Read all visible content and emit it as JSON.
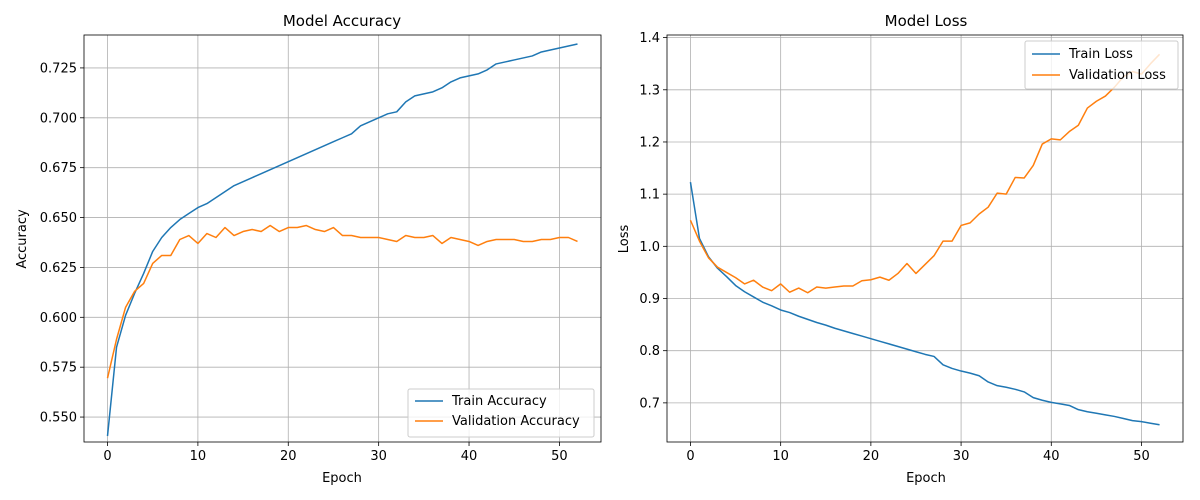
{
  "colors": {
    "train": "#1f77b4",
    "validation": "#ff7f0e",
    "grid": "#b0b0b0"
  },
  "chart_data": [
    {
      "type": "line",
      "title": "Model Accuracy",
      "xlabel": "Epoch",
      "ylabel": "Accuracy",
      "xlim": [
        -2.6,
        54.6
      ],
      "ylim": [
        0.5375,
        0.7415
      ],
      "xticks": [
        0,
        10,
        20,
        30,
        40,
        50
      ],
      "yticks": [
        0.55,
        0.575,
        0.6,
        0.625,
        0.65,
        0.675,
        0.7,
        0.725
      ],
      "ytick_labels": [
        "0.550",
        "0.575",
        "0.600",
        "0.625",
        "0.650",
        "0.675",
        "0.700",
        "0.725"
      ],
      "grid": true,
      "legend_position": "lower right",
      "x": [
        0,
        1,
        2,
        3,
        4,
        5,
        6,
        7,
        8,
        9,
        10,
        11,
        12,
        13,
        14,
        15,
        16,
        17,
        18,
        19,
        20,
        21,
        22,
        23,
        24,
        25,
        26,
        27,
        28,
        29,
        30,
        31,
        32,
        33,
        34,
        35,
        36,
        37,
        38,
        39,
        40,
        41,
        42,
        43,
        44,
        45,
        46,
        47,
        48,
        49,
        50,
        51,
        52
      ],
      "series": [
        {
          "name": "Train Accuracy",
          "color": "#1f77b4",
          "values": [
            0.5405,
            0.585,
            0.601,
            0.612,
            0.622,
            0.633,
            0.64,
            0.645,
            0.649,
            0.652,
            0.655,
            0.657,
            0.66,
            0.663,
            0.666,
            0.668,
            0.67,
            0.672,
            0.674,
            0.676,
            0.678,
            0.68,
            0.682,
            0.684,
            0.686,
            0.688,
            0.69,
            0.692,
            0.696,
            0.698,
            0.7,
            0.702,
            0.703,
            0.708,
            0.711,
            0.712,
            0.713,
            0.715,
            0.718,
            0.72,
            0.721,
            0.722,
            0.724,
            0.727,
            0.728,
            0.729,
            0.73,
            0.731,
            0.733,
            0.734,
            0.735,
            0.736,
            0.737
          ]
        },
        {
          "name": "Validation Accuracy",
          "color": "#ff7f0e",
          "values": [
            0.5695,
            0.589,
            0.605,
            0.613,
            0.617,
            0.627,
            0.631,
            0.631,
            0.639,
            0.641,
            0.637,
            0.642,
            0.64,
            0.645,
            0.641,
            0.643,
            0.644,
            0.643,
            0.646,
            0.643,
            0.645,
            0.645,
            0.646,
            0.644,
            0.643,
            0.645,
            0.641,
            0.641,
            0.64,
            0.64,
            0.64,
            0.639,
            0.638,
            0.641,
            0.64,
            0.64,
            0.641,
            0.637,
            0.64,
            0.639,
            0.638,
            0.636,
            0.638,
            0.639,
            0.639,
            0.639,
            0.638,
            0.638,
            0.639,
            0.639,
            0.64,
            0.64,
            0.638
          ]
        }
      ]
    },
    {
      "type": "line",
      "title": "Model Loss",
      "xlabel": "Epoch",
      "ylabel": "Loss",
      "xlim": [
        -2.6,
        54.6
      ],
      "ylim": [
        0.625,
        1.405
      ],
      "xticks": [
        0,
        10,
        20,
        30,
        40,
        50
      ],
      "yticks": [
        0.7,
        0.8,
        0.9,
        1.0,
        1.1,
        1.2,
        1.3,
        1.4
      ],
      "ytick_labels": [
        "0.7",
        "0.8",
        "0.9",
        "1.0",
        "1.1",
        "1.2",
        "1.3",
        "1.4"
      ],
      "grid": true,
      "legend_position": "upper right",
      "x": [
        0,
        1,
        2,
        3,
        4,
        5,
        6,
        7,
        8,
        9,
        10,
        11,
        12,
        13,
        14,
        15,
        16,
        17,
        18,
        19,
        20,
        21,
        22,
        23,
        24,
        25,
        26,
        27,
        28,
        29,
        30,
        31,
        32,
        33,
        34,
        35,
        36,
        37,
        38,
        39,
        40,
        41,
        42,
        43,
        44,
        45,
        46,
        47,
        48,
        49,
        50,
        51,
        52
      ],
      "series": [
        {
          "name": "Train Loss",
          "color": "#1f77b4",
          "values": [
            1.123,
            1.015,
            0.98,
            0.958,
            0.942,
            0.925,
            0.913,
            0.903,
            0.893,
            0.886,
            0.878,
            0.873,
            0.866,
            0.86,
            0.854,
            0.849,
            0.843,
            0.838,
            0.833,
            0.828,
            0.823,
            0.818,
            0.813,
            0.808,
            0.803,
            0.798,
            0.793,
            0.789,
            0.773,
            0.766,
            0.761,
            0.757,
            0.752,
            0.74,
            0.733,
            0.73,
            0.726,
            0.721,
            0.71,
            0.705,
            0.701,
            0.698,
            0.695,
            0.687,
            0.683,
            0.68,
            0.677,
            0.674,
            0.67,
            0.666,
            0.664,
            0.661,
            0.658
          ]
        },
        {
          "name": "Validation Loss",
          "color": "#ff7f0e",
          "values": [
            1.05,
            1.01,
            0.978,
            0.96,
            0.95,
            0.94,
            0.928,
            0.935,
            0.922,
            0.915,
            0.928,
            0.912,
            0.92,
            0.911,
            0.922,
            0.92,
            0.922,
            0.924,
            0.924,
            0.934,
            0.936,
            0.941,
            0.935,
            0.948,
            0.967,
            0.948,
            0.965,
            0.982,
            1.01,
            1.01,
            1.04,
            1.045,
            1.062,
            1.075,
            1.102,
            1.1,
            1.132,
            1.131,
            1.155,
            1.196,
            1.206,
            1.204,
            1.22,
            1.232,
            1.265,
            1.278,
            1.288,
            1.305,
            1.325,
            1.335,
            1.33,
            1.35,
            1.368
          ]
        }
      ]
    }
  ]
}
